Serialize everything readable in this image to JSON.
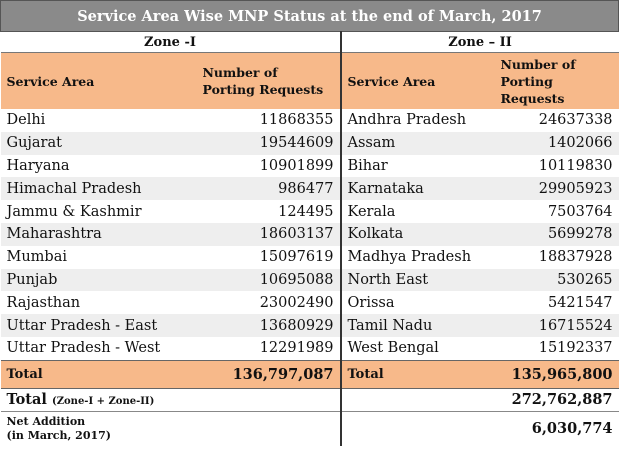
{
  "title": "Service Area Wise MNP Status at the end of March, 2017",
  "zone1": {
    "label": "Zone -I",
    "col_area": "Service Area",
    "col_num": "Number of Porting Requests",
    "rows": [
      {
        "area": "Delhi",
        "value": "11868355"
      },
      {
        "area": "Gujarat",
        "value": "19544609"
      },
      {
        "area": "Haryana",
        "value": "10901899"
      },
      {
        "area": "Himachal Pradesh",
        "value": "986477"
      },
      {
        "area": "Jammu & Kashmir",
        "value": "124495"
      },
      {
        "area": "Maharashtra",
        "value": "18603137"
      },
      {
        "area": "Mumbai",
        "value": "15097619"
      },
      {
        "area": "Punjab",
        "value": "10695088"
      },
      {
        "area": "Rajasthan",
        "value": "23002490"
      },
      {
        "area": "Uttar Pradesh - East",
        "value": "13680929"
      },
      {
        "area": "Uttar Pradesh - West",
        "value": "12291989"
      }
    ],
    "total_label": "Total",
    "total_value": "136,797,087"
  },
  "zone2": {
    "label": "Zone – II",
    "col_area": "Service Area",
    "col_num": "Number of Porting Requests",
    "rows": [
      {
        "area": "Andhra Pradesh",
        "value": "24637338"
      },
      {
        "area": "Assam",
        "value": "1402066"
      },
      {
        "area": "Bihar",
        "value": "10119830"
      },
      {
        "area": "Karnataka",
        "value": "29905923"
      },
      {
        "area": "Kerala",
        "value": "7503764"
      },
      {
        "area": "Kolkata",
        "value": "5699278"
      },
      {
        "area": "Madhya Pradesh",
        "value": "18837928"
      },
      {
        "area": "North East",
        "value": "530265"
      },
      {
        "area": "Orissa",
        "value": "5421547"
      },
      {
        "area": "Tamil Nadu",
        "value": "16715524"
      },
      {
        "area": "West Bengal",
        "value": "15192337"
      }
    ],
    "total_label": "Total",
    "total_value": "135,965,800"
  },
  "grand_total": {
    "label": "Total",
    "label_note": "(Zone-I + Zone-II)",
    "value": "272,762,887"
  },
  "net_addition": {
    "label_line1": "Net Addition",
    "label_line2": "(in March, 2017)",
    "value": "6,030,774"
  },
  "colors": {
    "title_bg": "#8a8a8a",
    "header_bg": "#f7b98a",
    "alt_row_bg": "#eeeeee"
  }
}
